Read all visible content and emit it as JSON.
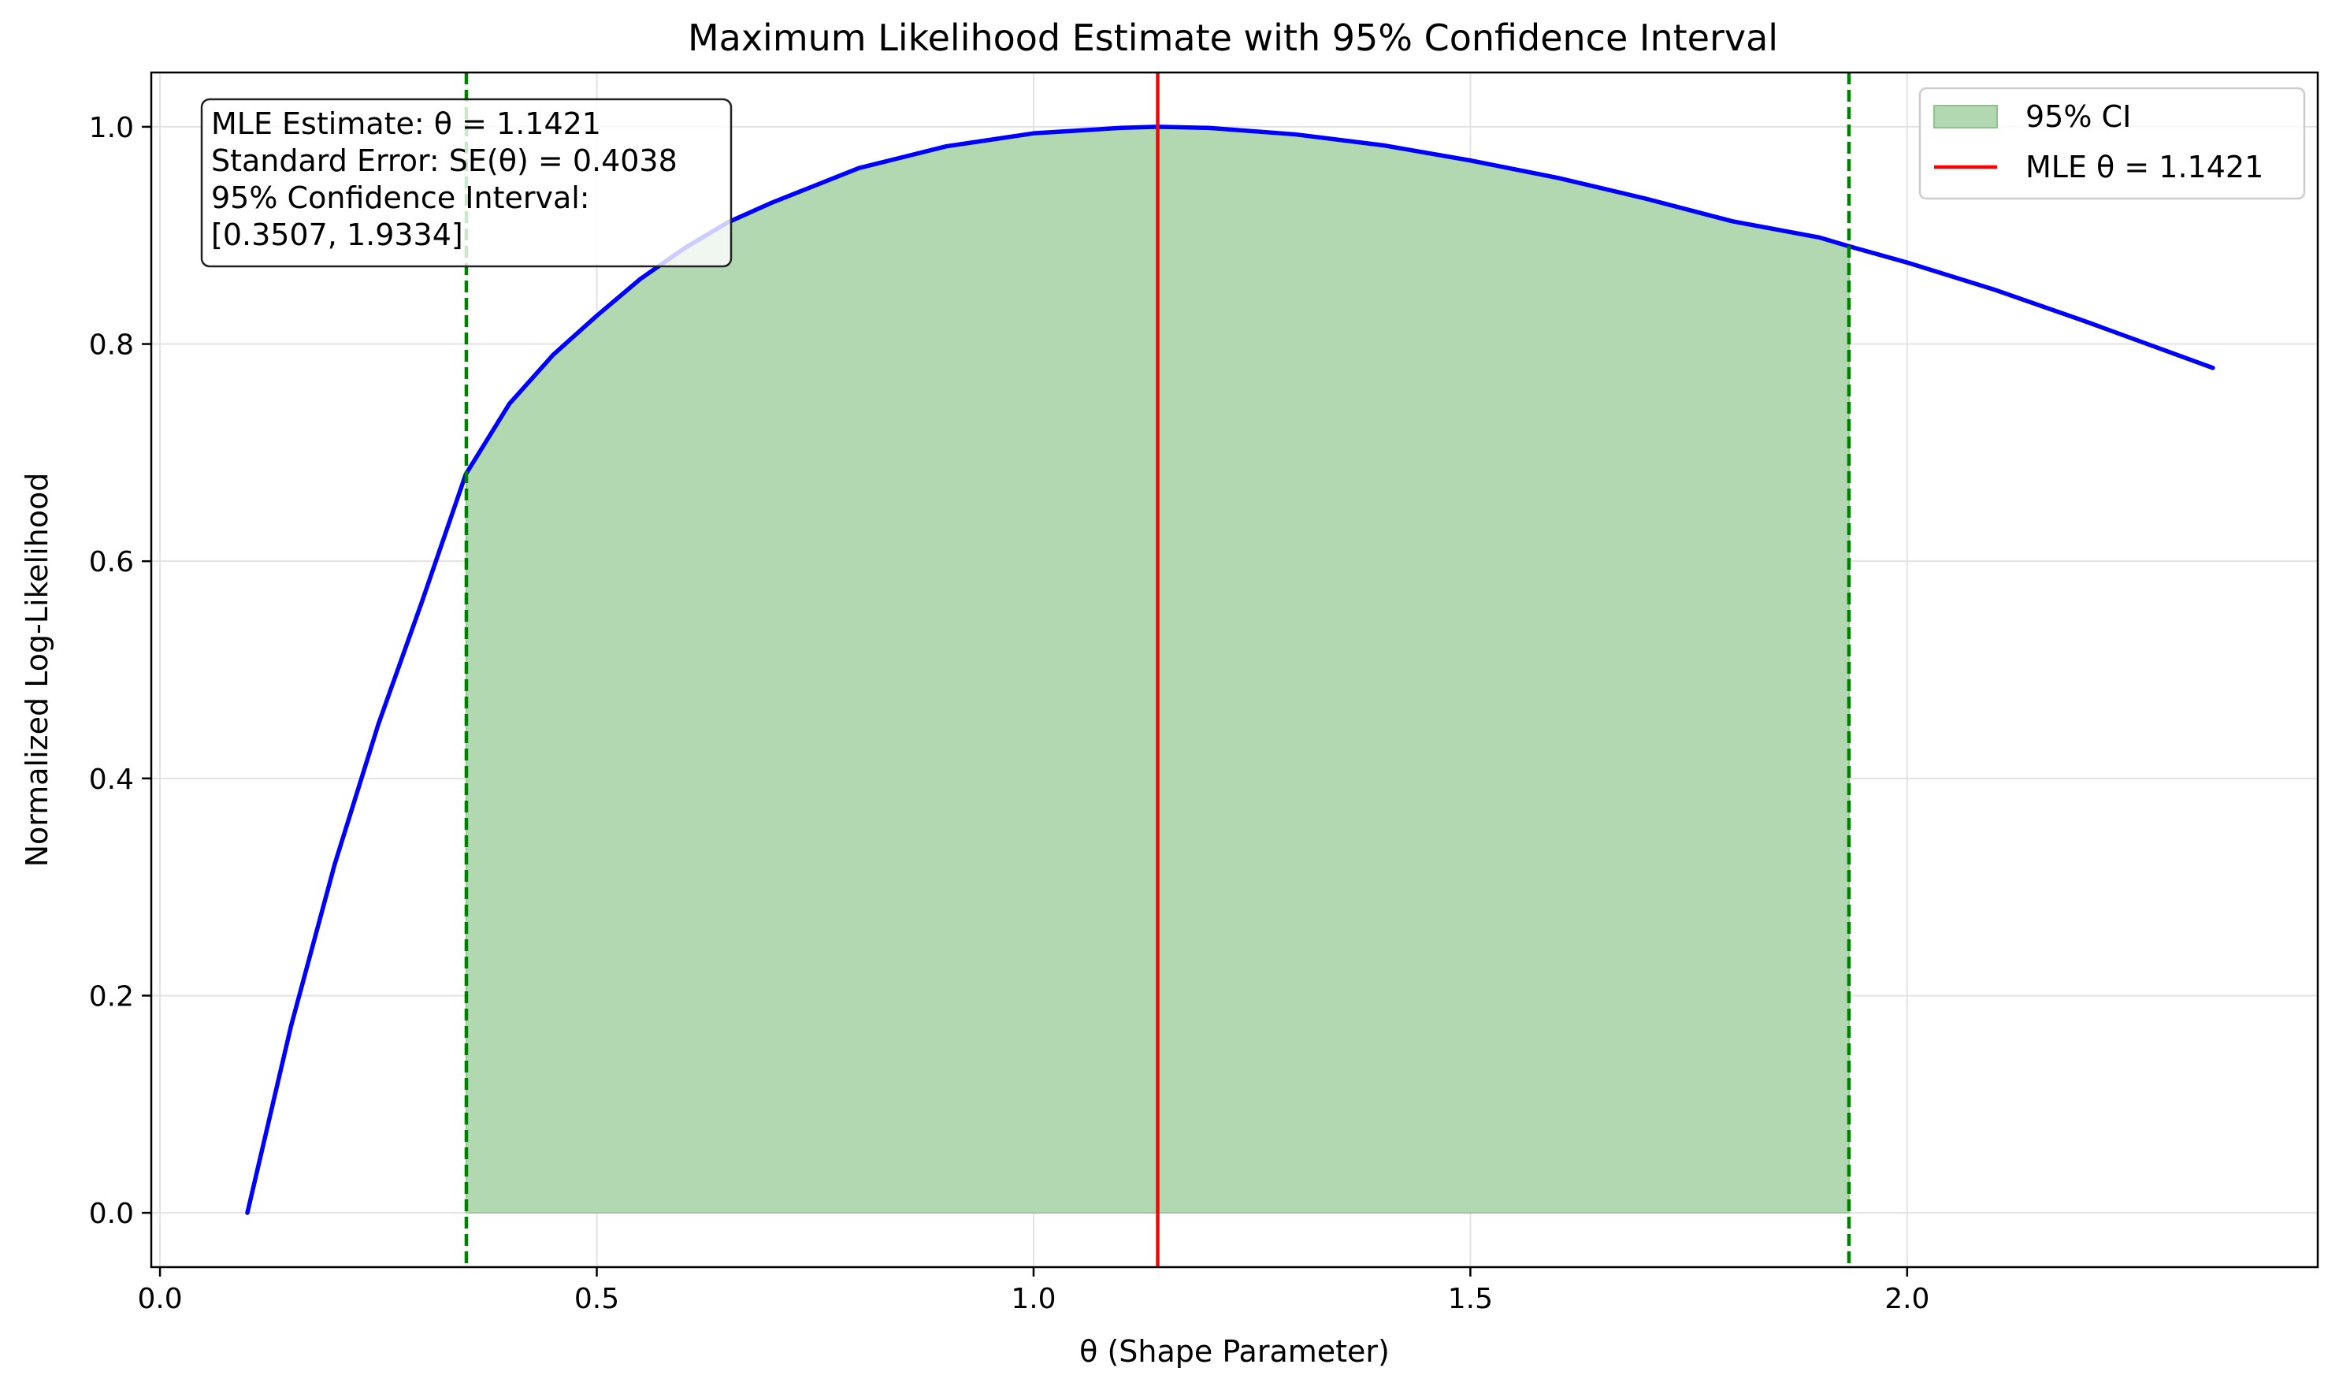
{
  "chart_data": {
    "type": "line",
    "title": "Maximum Likelihood Estimate with 95% Confidence Interval",
    "xlabel": "θ (Shape Parameter)",
    "ylabel": "Normalized Log-Likelihood",
    "xlim": [
      -0.01,
      2.47
    ],
    "ylim": [
      -0.05,
      1.05
    ],
    "x_ticks": [
      0.0,
      0.5,
      1.0,
      1.5,
      2.0
    ],
    "x_tick_labels": [
      "0.0",
      "0.5",
      "1.0",
      "1.5",
      "2.0"
    ],
    "y_ticks": [
      0.0,
      0.2,
      0.4,
      0.6,
      0.8,
      1.0
    ],
    "y_tick_labels": [
      "0.0",
      "0.2",
      "0.4",
      "0.6",
      "0.8",
      "1.0"
    ],
    "grid": true,
    "legend_position": "top-right",
    "series": [
      {
        "color": "#0000ff",
        "x": [
          0.1,
          0.15,
          0.2,
          0.25,
          0.3,
          0.35,
          0.4,
          0.45,
          0.5,
          0.55,
          0.6,
          0.65,
          0.7,
          0.8,
          0.9,
          1.0,
          1.1,
          1.1421,
          1.2,
          1.3,
          1.4,
          1.5,
          1.6,
          1.7,
          1.8,
          1.9,
          1.9334,
          2.0,
          2.1,
          2.2,
          2.35
        ],
        "y": [
          0.0,
          0.172,
          0.321,
          0.45,
          0.563,
          0.68,
          0.745,
          0.79,
          0.826,
          0.86,
          0.888,
          0.912,
          0.93,
          0.962,
          0.982,
          0.994,
          0.999,
          1.0,
          0.999,
          0.993,
          0.983,
          0.969,
          0.953,
          0.934,
          0.913,
          0.898,
          0.89,
          0.875,
          0.85,
          0.822,
          0.778
        ]
      }
    ],
    "mle": {
      "value": 1.1421,
      "color": "#ff0000",
      "label": "MLE θ = 1.1421"
    },
    "ci": {
      "lower": 0.3507,
      "upper": 1.9334,
      "fill_color": "#b2d8b2",
      "line_color": "#008000",
      "label": "95% CI"
    },
    "annotation": {
      "lines": [
        "MLE Estimate: θ = 1.1421",
        "Standard Error: SE(θ) = 0.4038",
        "95% Confidence Interval:",
        "[0.3507, 1.9334]"
      ]
    }
  }
}
